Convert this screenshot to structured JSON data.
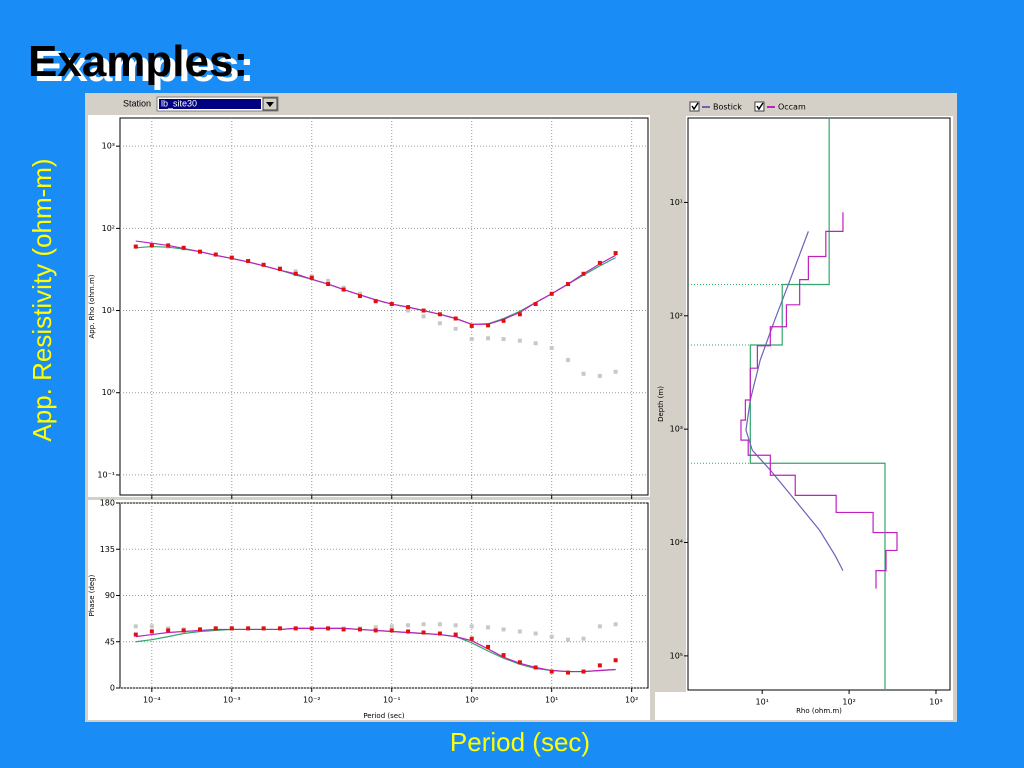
{
  "slide": {
    "title": "Examples:",
    "ylabel": "App. Resistivity (ohm-m)",
    "xlabel": "Period (sec)"
  },
  "station": {
    "label": "Station",
    "value": "lb_site30"
  },
  "chart_data": [
    {
      "type": "line",
      "ylabel": "App. Rho (ohm.m)",
      "xlog": true,
      "ylog": true,
      "grid": true,
      "xlim": [
        4e-05,
        160
      ],
      "ylim": [
        0.057,
        2200
      ],
      "xticks": [
        0.0001,
        0.001,
        0.01,
        0.1,
        1,
        10,
        100
      ],
      "yticks": [
        {
          "value": 0.1,
          "label": "10⁻¹"
        },
        {
          "value": 1,
          "label": "10⁰"
        },
        {
          "value": 10,
          "label": "10¹"
        },
        {
          "value": 100,
          "label": "10²"
        },
        {
          "value": 1000,
          "label": "10³"
        }
      ],
      "x": [
        6.3e-05,
        0.0001,
        0.00016,
        0.00025,
        0.0004,
        0.00063,
        0.001,
        0.0016,
        0.0025,
        0.004,
        0.0063,
        0.01,
        0.016,
        0.025,
        0.04,
        0.063,
        0.1,
        0.16,
        0.25,
        0.4,
        0.63,
        1,
        1.6,
        2.5,
        4,
        6.3,
        10,
        16,
        25,
        40,
        63
      ],
      "series": [
        {
          "color": "#c8c8c8",
          "style": "markers",
          "values": [
            60,
            62,
            60,
            57,
            52,
            48,
            44,
            40,
            36,
            33,
            30,
            26,
            23,
            19,
            16,
            13,
            12,
            10,
            8.5,
            7,
            6,
            4.5,
            4.6,
            4.5,
            4.3,
            4.0,
            3.5,
            2.5,
            1.7,
            1.6,
            1.8
          ]
        },
        {
          "color": "#2fa86a",
          "style": "line",
          "values": [
            58,
            60,
            59,
            56,
            52,
            47,
            43,
            39,
            35,
            31,
            27,
            24,
            21,
            18,
            15.5,
            13.5,
            12,
            11,
            10,
            9,
            8,
            6.8,
            6.9,
            8,
            9.8,
            12.5,
            16,
            21,
            27,
            35,
            44
          ]
        },
        {
          "color": "#c020c0",
          "style": "line",
          "values": [
            70,
            66,
            62,
            57,
            52,
            47,
            43,
            39,
            35,
            31,
            28,
            24,
            21,
            18,
            15.5,
            13.5,
            12,
            11,
            10,
            9,
            8,
            6.8,
            6.8,
            7.8,
            9.5,
            12.5,
            16,
            21,
            28,
            37,
            47
          ]
        },
        {
          "color": "#e01010",
          "style": "markers",
          "values": [
            60,
            62,
            62,
            58,
            52,
            48,
            44,
            40,
            36,
            32,
            28,
            25,
            21,
            18,
            15,
            13,
            12,
            11,
            10,
            9,
            8,
            6.5,
            6.6,
            7.5,
            9,
            12,
            16,
            21,
            28,
            38,
            50
          ]
        }
      ]
    },
    {
      "type": "line",
      "ylabel": "Phase (deg)",
      "xlabel": "Period (sec)",
      "xlog": true,
      "ylog": false,
      "grid": true,
      "xlim": [
        4e-05,
        160
      ],
      "ylim": [
        0,
        180
      ],
      "xticks": [
        {
          "value": 0.0001,
          "label": "10⁻⁴"
        },
        {
          "value": 0.001,
          "label": "10⁻³"
        },
        {
          "value": 0.01,
          "label": "10⁻²"
        },
        {
          "value": 0.1,
          "label": "10⁻¹"
        },
        {
          "value": 1,
          "label": "10⁰"
        },
        {
          "value": 10,
          "label": "10¹"
        },
        {
          "value": 100,
          "label": "10²"
        }
      ],
      "yticks": [
        0,
        45,
        90,
        135,
        180
      ],
      "x": [
        6.3e-05,
        0.0001,
        0.00016,
        0.00025,
        0.0004,
        0.00063,
        0.001,
        0.0016,
        0.0025,
        0.004,
        0.0063,
        0.01,
        0.016,
        0.025,
        0.04,
        0.063,
        0.1,
        0.16,
        0.25,
        0.4,
        0.63,
        1,
        1.6,
        2.5,
        4,
        6.3,
        10,
        16,
        25,
        40,
        63
      ],
      "series": [
        {
          "color": "#c8c8c8",
          "style": "markers",
          "values": [
            60,
            60,
            58,
            57,
            57,
            58,
            58,
            58,
            58,
            58,
            58,
            58,
            58,
            58,
            58,
            59,
            60,
            61,
            62,
            62,
            61,
            60,
            59,
            57,
            55,
            53,
            50,
            47,
            48,
            60,
            62
          ]
        },
        {
          "color": "#2fa86a",
          "style": "line",
          "values": [
            45,
            47,
            50,
            53,
            55,
            56,
            57,
            57,
            57,
            57,
            58,
            58,
            58,
            58,
            57,
            56,
            55,
            54,
            53,
            52,
            50,
            44,
            36,
            29,
            23,
            19,
            17,
            16,
            16,
            17,
            18
          ]
        },
        {
          "color": "#c020c0",
          "style": "line",
          "values": [
            50,
            52,
            54,
            55,
            56,
            57,
            57,
            57,
            57,
            57,
            58,
            58,
            58,
            58,
            57,
            56,
            55,
            54,
            53,
            52,
            50,
            46,
            38,
            30,
            24,
            20,
            17,
            16,
            16,
            17,
            18
          ]
        },
        {
          "color": "#e01010",
          "style": "markers",
          "values": [
            52,
            55,
            56,
            56,
            57,
            58,
            58,
            58,
            58,
            58,
            58,
            58,
            58,
            57,
            57,
            56,
            56,
            55,
            54,
            53,
            52,
            48,
            40,
            32,
            25,
            20,
            16,
            15,
            16,
            22,
            27
          ]
        }
      ]
    },
    {
      "type": "line",
      "ylabel": "Depth (m)",
      "xlabel": "Rho (ohm.m)",
      "xlog": true,
      "ylog": true,
      "y_reversed": true,
      "grid": false,
      "xlim": [
        1.4,
        1450
      ],
      "ylim": [
        1.8,
        200000
      ],
      "xticks": [
        {
          "value": 10,
          "label": "10¹"
        },
        {
          "value": 100,
          "label": "10²"
        },
        {
          "value": 1000,
          "label": "10³"
        }
      ],
      "yticks": [
        {
          "value": 10,
          "label": "10¹"
        },
        {
          "value": 100,
          "label": "10²"
        },
        {
          "value": 1000,
          "label": "10³"
        },
        {
          "value": 10000,
          "label": "10⁴"
        },
        {
          "value": 100000,
          "label": "10⁵"
        }
      ],
      "series": [
        {
          "color": "#2fa86a",
          "style": "line",
          "interfaces": true,
          "x": [
            59,
            59,
            17,
            17,
            7.3,
            7.3,
            259,
            259
          ],
          "values": [
            1.8,
            53,
            53,
            181,
            181,
            2000,
            2000,
            200000
          ]
        },
        {
          "name": "Bostick",
          "color": "#7060b8",
          "style": "line",
          "x": [
            34,
            21,
            14,
            9.5,
            7.3,
            6.5,
            7.7,
            12.4,
            24,
            46,
            69,
            85
          ],
          "values": [
            18,
            48,
            108,
            245,
            553,
            1020,
            1535,
            2300,
            4250,
            7840,
            13000,
            17700
          ]
        },
        {
          "name": "Occam",
          "color": "#c020c0",
          "style": "line",
          "x": [
            85,
            85,
            54,
            54,
            34,
            34,
            27,
            27,
            19,
            19,
            12.4,
            12.4,
            8.8,
            8.8,
            7.3,
            7.3,
            6.4,
            6.4,
            5.7,
            5.7,
            6.9,
            6.9,
            12.4,
            12.4,
            24,
            24,
            71,
            71,
            189,
            189,
            356,
            356,
            266,
            266,
            204,
            204
          ],
          "values": [
            12.2,
            18,
            18,
            30,
            30,
            48,
            48,
            80,
            80,
            125,
            125,
            184,
            184,
            290,
            290,
            553,
            553,
            832,
            832,
            1250,
            1250,
            1700,
            1700,
            2550,
            2550,
            3840,
            3840,
            5430,
            5430,
            8170,
            8170,
            11750,
            11750,
            17700,
            17700,
            25500
          ]
        }
      ]
    }
  ]
}
